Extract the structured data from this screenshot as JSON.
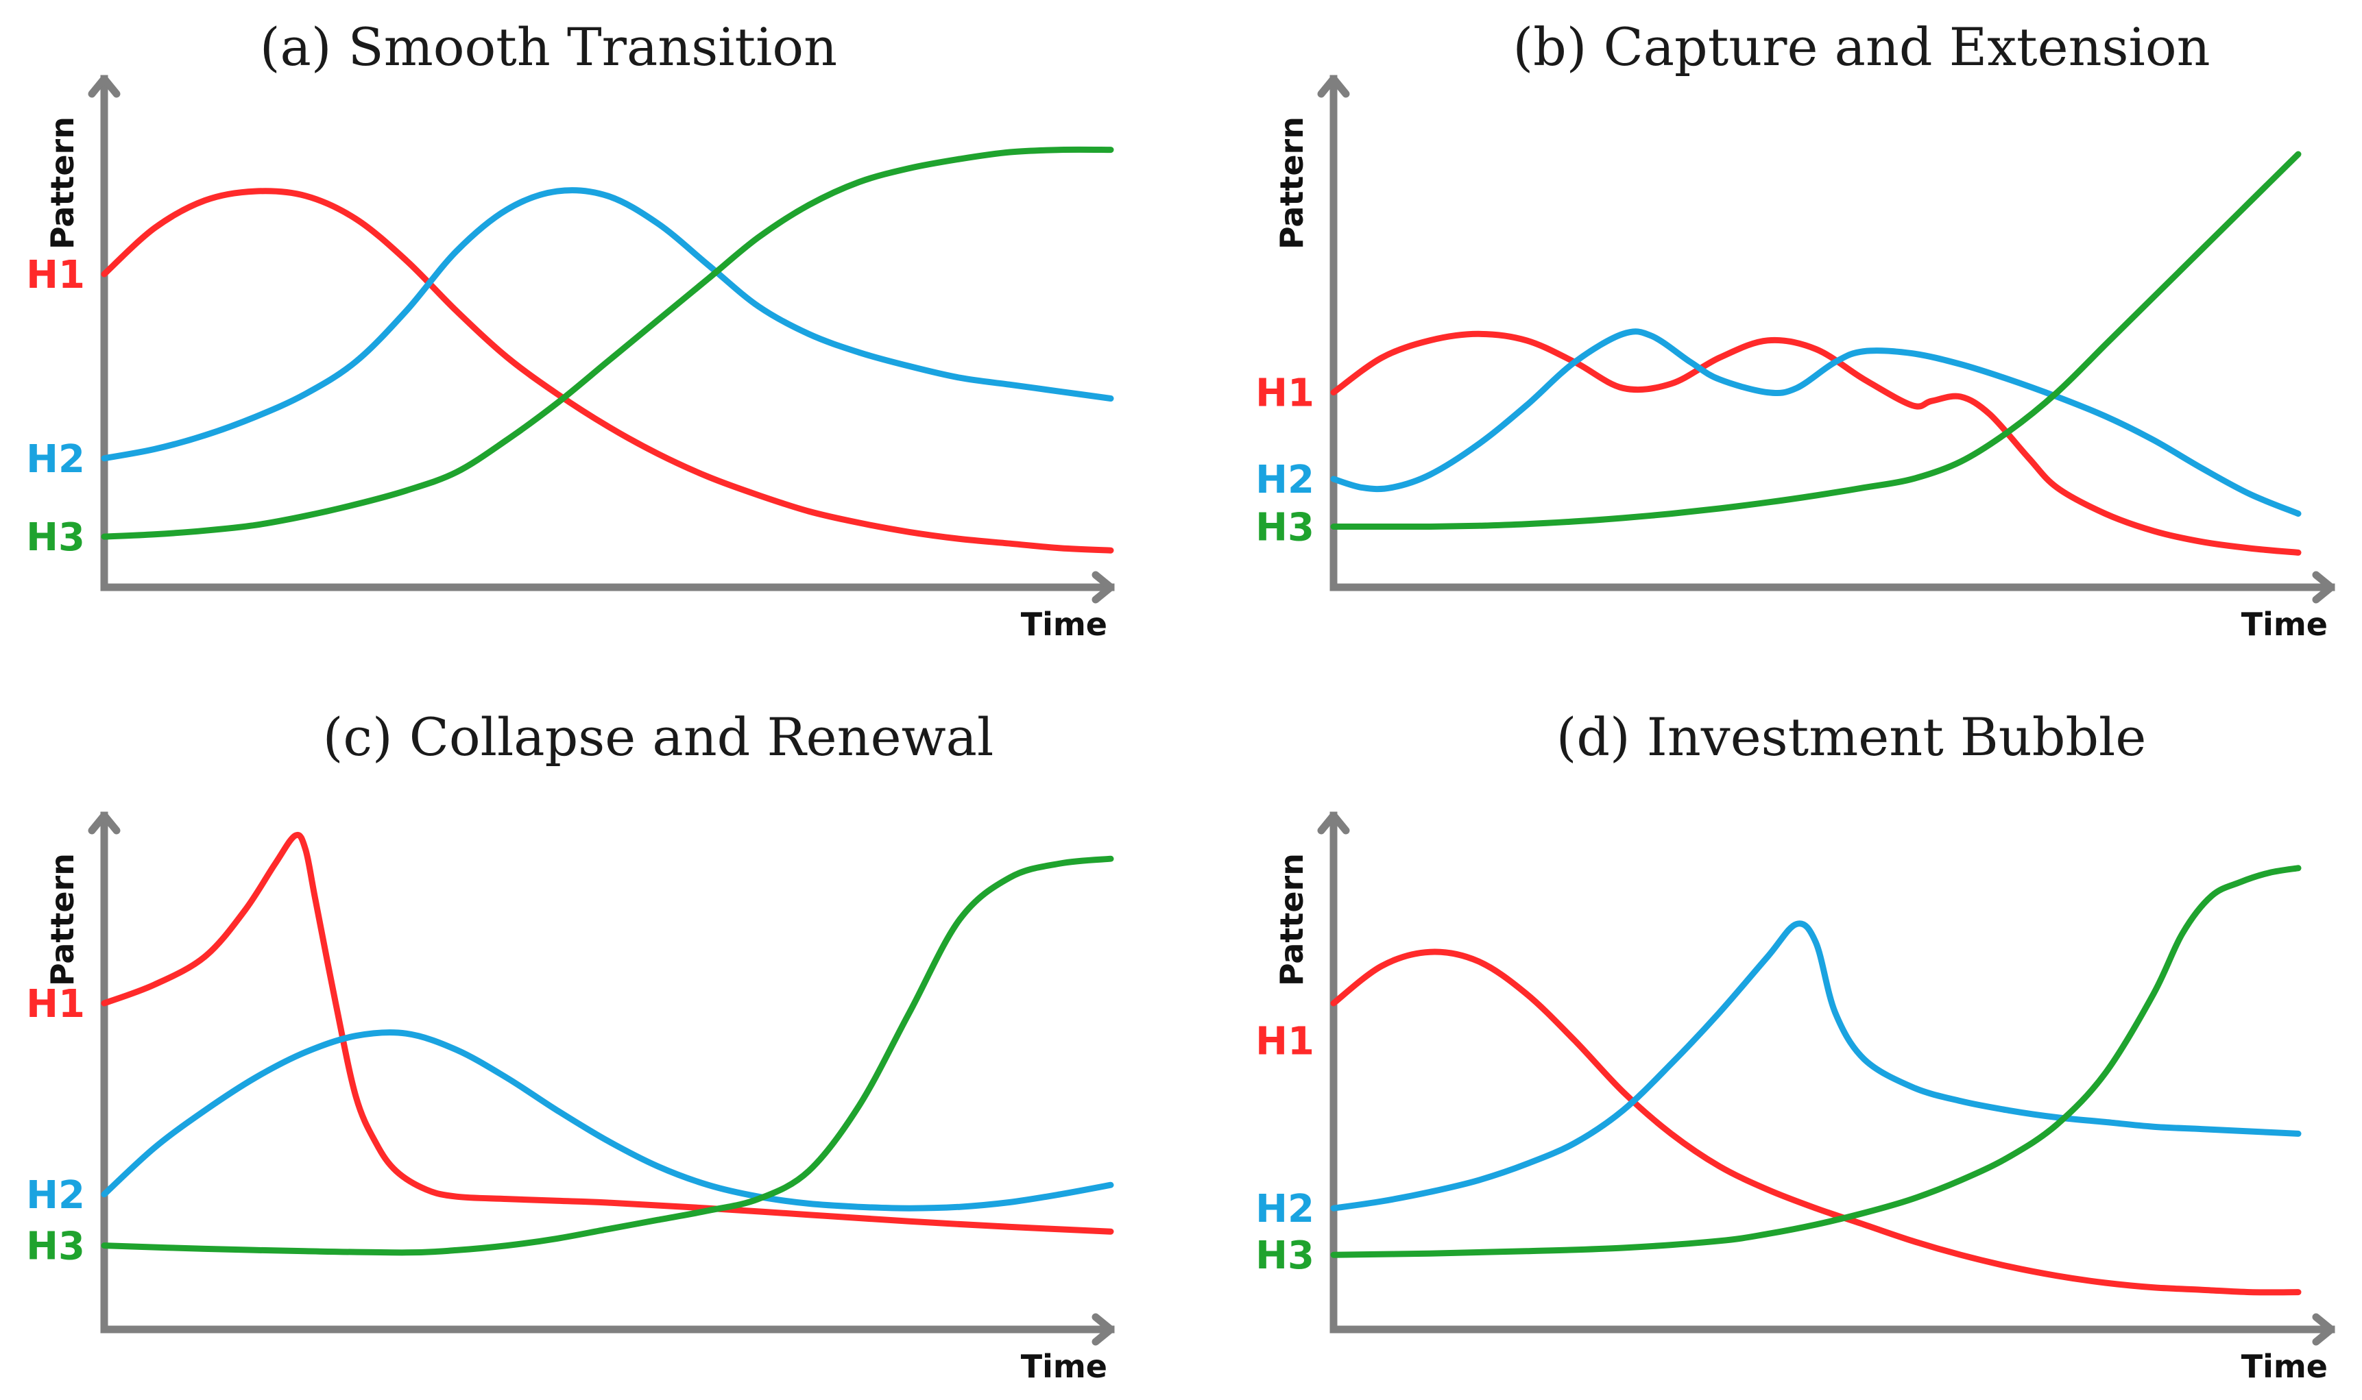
{
  "colors": {
    "H1": "#ff2a2a",
    "H2": "#1aa3e0",
    "H3": "#1fa32e"
  },
  "chart_data": [
    {
      "type": "line",
      "title": "(a) Smooth Transition",
      "xlabel": "Time",
      "ylabel": "Pattern",
      "xlim": [
        0,
        100
      ],
      "ylim": [
        0,
        100
      ],
      "series": [
        {
          "name": "H1",
          "x": [
            0,
            5,
            10,
            15,
            20,
            25,
            30,
            35,
            40,
            45,
            50,
            55,
            60,
            65,
            70,
            75,
            80,
            85,
            90,
            95,
            100
          ],
          "y": [
            68,
            78,
            84,
            86,
            85,
            80,
            71,
            60,
            50,
            42,
            35,
            29,
            24,
            20,
            16.5,
            14,
            12,
            10.5,
            9.5,
            8.5,
            8
          ]
        },
        {
          "name": "H2",
          "x": [
            0,
            5,
            10,
            15,
            20,
            25,
            30,
            35,
            40,
            45,
            50,
            55,
            60,
            65,
            70,
            75,
            80,
            85,
            90,
            95,
            100
          ],
          "y": [
            28,
            30,
            33,
            37,
            42,
            49,
            60,
            73,
            82,
            86,
            85,
            79,
            70,
            61,
            55,
            51,
            48,
            45.5,
            44,
            42.5,
            41
          ]
        },
        {
          "name": "H3",
          "x": [
            0,
            5,
            10,
            15,
            20,
            25,
            30,
            35,
            40,
            45,
            50,
            55,
            60,
            65,
            70,
            75,
            80,
            85,
            90,
            95,
            100
          ],
          "y": [
            11,
            11.5,
            12.3,
            13.5,
            15.5,
            18,
            21,
            25,
            32,
            40,
            49,
            58,
            67,
            76,
            83,
            88,
            91,
            93,
            94.5,
            95,
            95
          ]
        }
      ],
      "labels": [
        {
          "name": "H1",
          "y": 68
        },
        {
          "name": "H2",
          "y": 28
        },
        {
          "name": "H3",
          "y": 11
        }
      ]
    },
    {
      "type": "line",
      "title": "(b) Capture and Extension",
      "xlabel": "Time",
      "ylabel": "Pattern",
      "xlim": [
        0,
        100
      ],
      "ylim": [
        0,
        100
      ],
      "series": [
        {
          "name": "H1",
          "x": [
            0,
            5,
            10,
            15,
            20,
            25,
            30,
            35,
            40,
            45,
            50,
            55,
            60,
            62,
            65,
            68,
            72,
            75,
            80,
            85,
            90,
            95,
            100
          ],
          "y": [
            45,
            53,
            57,
            58.5,
            57,
            52,
            46,
            47,
            53,
            57,
            55,
            48,
            42,
            43,
            44,
            40,
            30,
            23,
            17,
            13,
            10.5,
            9,
            8
          ]
        },
        {
          "name": "H2",
          "x": [
            0,
            3,
            6,
            10,
            15,
            20,
            25,
            30,
            33,
            37,
            40,
            45,
            48,
            52,
            55,
            60,
            65,
            70,
            75,
            80,
            85,
            90,
            95,
            100
          ],
          "y": [
            25,
            23,
            23,
            26,
            33,
            42,
            52,
            58.5,
            58,
            52,
            48,
            45,
            46,
            52,
            54.5,
            54,
            51.5,
            48,
            44,
            39.5,
            34,
            27.5,
            21.5,
            17
          ]
        },
        {
          "name": "H3",
          "x": [
            0,
            5,
            10,
            15,
            20,
            25,
            30,
            35,
            40,
            45,
            50,
            55,
            60,
            65,
            70,
            75,
            80,
            85,
            90,
            95,
            100
          ],
          "y": [
            14,
            14,
            14,
            14.2,
            14.6,
            15.2,
            16,
            17,
            18.2,
            19.6,
            21.2,
            23,
            25,
            29,
            36,
            45,
            56,
            67,
            78,
            89,
            100
          ]
        }
      ],
      "labels": [
        {
          "name": "H1",
          "y": 45
        },
        {
          "name": "H2",
          "y": 25
        },
        {
          "name": "H3",
          "y": 14
        }
      ]
    },
    {
      "type": "line",
      "title": "(c) Collapse and Renewal",
      "xlabel": "Time",
      "ylabel": "Pattern",
      "xlim": [
        0,
        100
      ],
      "ylim": [
        0,
        100
      ],
      "series": [
        {
          "name": "H1",
          "x": [
            0,
            5,
            10,
            14,
            17,
            19,
            20,
            21,
            23,
            25,
            27,
            29,
            32,
            35,
            40,
            45,
            50,
            60,
            70,
            80,
            90,
            100
          ],
          "y": [
            70,
            74,
            80,
            90,
            100,
            106,
            103,
            92,
            70,
            50,
            40,
            34,
            30,
            28.5,
            28,
            27.6,
            27.2,
            26,
            24.6,
            23.2,
            22,
            21
          ]
        },
        {
          "name": "H2",
          "x": [
            0,
            5,
            10,
            15,
            20,
            25,
            30,
            35,
            40,
            45,
            50,
            55,
            60,
            65,
            70,
            75,
            80,
            85,
            90,
            95,
            100
          ],
          "y": [
            29,
            39,
            47,
            54,
            59.5,
            63,
            63.5,
            60,
            54,
            47,
            40.5,
            35,
            31,
            28.5,
            27,
            26.3,
            26,
            26.3,
            27.3,
            29,
            31
          ]
        },
        {
          "name": "H3",
          "x": [
            0,
            10,
            20,
            30,
            35,
            40,
            45,
            50,
            55,
            60,
            65,
            70,
            75,
            80,
            85,
            90,
            95,
            100
          ],
          "y": [
            18,
            17.3,
            16.8,
            16.5,
            17,
            18,
            19.5,
            21.5,
            23.5,
            25.5,
            28,
            34,
            48,
            68,
            88,
            97,
            100,
            101
          ]
        }
      ],
      "labels": [
        {
          "name": "H1",
          "y": 70
        },
        {
          "name": "H2",
          "y": 29
        },
        {
          "name": "H3",
          "y": 18
        }
      ]
    },
    {
      "type": "line",
      "title": "(d) Investment Bubble",
      "xlabel": "Time",
      "ylabel": "Pattern",
      "xlim": [
        0,
        100
      ],
      "ylim": [
        0,
        100
      ],
      "series": [
        {
          "name": "H1",
          "x": [
            0,
            5,
            10,
            15,
            20,
            25,
            30,
            35,
            40,
            45,
            50,
            55,
            60,
            65,
            70,
            75,
            80,
            85,
            90,
            95,
            100
          ],
          "y": [
            70,
            78,
            81,
            79,
            72,
            62,
            51,
            42,
            35,
            30,
            26,
            22.5,
            19,
            16,
            13.5,
            11.5,
            10,
            9,
            8.5,
            8,
            8
          ]
        },
        {
          "name": "H2",
          "x": [
            0,
            5,
            10,
            15,
            20,
            25,
            30,
            35,
            40,
            45,
            48,
            50,
            52,
            55,
            60,
            65,
            70,
            75,
            80,
            85,
            90,
            95,
            100
          ],
          "y": [
            26,
            27.5,
            29.5,
            32,
            35.5,
            40,
            47,
            57,
            68,
            80,
            87,
            83,
            68,
            58,
            52,
            49,
            47,
            45.5,
            44.5,
            43.5,
            43,
            42.5,
            42
          ]
        },
        {
          "name": "H3",
          "x": [
            0,
            10,
            20,
            30,
            40,
            45,
            50,
            55,
            60,
            65,
            70,
            75,
            80,
            85,
            88,
            91,
            94,
            97,
            100
          ],
          "y": [
            16,
            16.3,
            16.8,
            17.5,
            19,
            20.5,
            22.5,
            25,
            28,
            32,
            37,
            44,
            55,
            72,
            85,
            93,
            96,
            98,
            99
          ]
        }
      ],
      "labels": [
        {
          "name": "H1",
          "y": 62
        },
        {
          "name": "H2",
          "y": 26
        },
        {
          "name": "H3",
          "y": 16
        }
      ]
    }
  ]
}
